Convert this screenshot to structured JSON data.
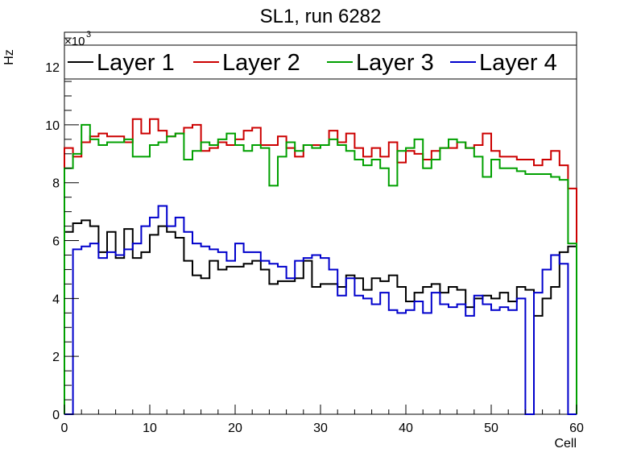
{
  "chart_data": {
    "type": "line",
    "title": "SL1, run 6282",
    "xlabel": "Cell",
    "ylabel": "Hz",
    "y_multiplier": "×10",
    "y_multiplier_exp": "3",
    "xlim": [
      0,
      60
    ],
    "ylim": [
      0,
      13.2
    ],
    "x_ticks": [
      0,
      10,
      20,
      30,
      40,
      50,
      60
    ],
    "y_ticks": [
      0,
      2,
      4,
      6,
      8,
      10,
      12
    ],
    "grid": false,
    "legend_position": "top",
    "series": [
      {
        "name": "Layer 1",
        "color": "#000000",
        "values": [
          6.3,
          6.6,
          6.7,
          6.5,
          5.6,
          6.3,
          5.4,
          6.4,
          5.4,
          5.6,
          6.2,
          6.5,
          6.3,
          6.1,
          5.3,
          4.8,
          4.7,
          5.3,
          5.0,
          5.1,
          5.1,
          5.2,
          5.3,
          5.0,
          4.5,
          4.6,
          4.6,
          4.7,
          5.3,
          4.4,
          4.5,
          4.5,
          4.4,
          4.8,
          4.7,
          4.3,
          4.7,
          4.6,
          4.8,
          4.4,
          3.9,
          4.2,
          4.4,
          4.5,
          4.2,
          4.4,
          4.3,
          3.7,
          4.0,
          4.1,
          4.0,
          4.2,
          3.9,
          4.4,
          4.3,
          3.4,
          4.0,
          4.4,
          5.6,
          5.8
        ]
      },
      {
        "name": "Layer 2",
        "color": "#cc0000",
        "values": [
          9.2,
          8.9,
          9.4,
          9.6,
          9.7,
          9.6,
          9.6,
          9.4,
          10.2,
          9.7,
          10.2,
          9.8,
          9.6,
          9.7,
          9.9,
          10.0,
          9.1,
          9.2,
          9.4,
          9.3,
          9.5,
          9.8,
          9.9,
          9.3,
          9.3,
          9.6,
          9.2,
          8.9,
          9.3,
          9.3,
          9.3,
          9.8,
          9.4,
          9.7,
          9.2,
          8.9,
          9.2,
          8.9,
          9.4,
          8.7,
          9.1,
          9.0,
          8.8,
          9.1,
          9.2,
          9.2,
          9.4,
          9.2,
          9.3,
          9.7,
          9.1,
          8.9,
          8.9,
          8.8,
          8.8,
          8.6,
          8.8,
          9.1,
          8.6,
          7.8
        ]
      },
      {
        "name": "Layer 3",
        "color": "#00a000",
        "values": [
          8.5,
          9.0,
          10.0,
          9.5,
          9.3,
          9.4,
          9.4,
          9.5,
          8.9,
          8.9,
          9.3,
          9.4,
          9.6,
          9.7,
          8.8,
          9.1,
          9.4,
          9.3,
          9.5,
          9.7,
          9.3,
          9.1,
          9.3,
          9.2,
          7.9,
          8.9,
          9.4,
          9.1,
          9.3,
          9.2,
          9.3,
          9.5,
          9.3,
          9.1,
          8.8,
          8.6,
          8.8,
          8.5,
          7.9,
          9.1,
          9.2,
          9.5,
          8.5,
          8.8,
          9.2,
          9.5,
          9.4,
          9.2,
          8.9,
          8.2,
          8.8,
          8.5,
          8.5,
          8.4,
          8.3,
          8.3,
          8.3,
          8.2,
          8.1,
          5.9
        ]
      },
      {
        "name": "Layer 4",
        "color": "#0000cc",
        "values": [
          0,
          5.7,
          5.8,
          5.9,
          5.4,
          5.6,
          5.5,
          5.7,
          5.9,
          6.5,
          6.8,
          7.2,
          6.5,
          6.8,
          6.3,
          5.9,
          5.8,
          5.7,
          5.6,
          5.3,
          5.9,
          5.6,
          5.6,
          5.3,
          5.2,
          5.1,
          4.7,
          5.3,
          5.4,
          5.5,
          5.4,
          5.0,
          4.1,
          4.7,
          4.1,
          4.0,
          3.8,
          4.2,
          3.6,
          3.5,
          3.6,
          3.9,
          3.5,
          4.2,
          3.8,
          3.7,
          3.8,
          3.4,
          4.1,
          3.8,
          3.6,
          3.7,
          3.6,
          4.0,
          0,
          4.2,
          5.0,
          5.5,
          5.2,
          0
        ]
      }
    ]
  }
}
